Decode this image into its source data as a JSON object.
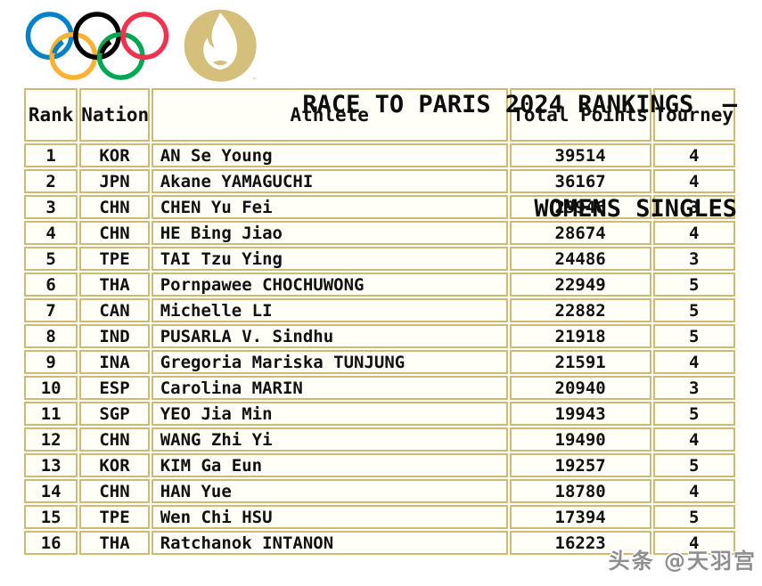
{
  "title": {
    "line1": "RACE TO PARIS 2024 RANKINGS  –",
    "line2": "WOMENS SINGLES"
  },
  "table": {
    "columns": [
      "Rank",
      "Nation",
      "Athlete",
      "Total Points",
      "Tourney"
    ],
    "rows": [
      {
        "rank": "1",
        "nation": "KOR",
        "athlete": "AN Se Young",
        "points": "39514",
        "tourney": "4"
      },
      {
        "rank": "2",
        "nation": "JPN",
        "athlete": "Akane YAMAGUCHI",
        "points": "36167",
        "tourney": "4"
      },
      {
        "rank": "3",
        "nation": "CHN",
        "athlete": "CHEN Yu Fei",
        "points": "29946",
        "tourney": "3"
      },
      {
        "rank": "4",
        "nation": "CHN",
        "athlete": "HE Bing Jiao",
        "points": "28674",
        "tourney": "4"
      },
      {
        "rank": "5",
        "nation": "TPE",
        "athlete": "TAI Tzu Ying",
        "points": "24486",
        "tourney": "3"
      },
      {
        "rank": "6",
        "nation": "THA",
        "athlete": "Pornpawee CHOCHUWONG",
        "points": "22949",
        "tourney": "5"
      },
      {
        "rank": "7",
        "nation": "CAN",
        "athlete": "Michelle LI",
        "points": "22882",
        "tourney": "5"
      },
      {
        "rank": "8",
        "nation": "IND",
        "athlete": "PUSARLA V. Sindhu",
        "points": "21918",
        "tourney": "5"
      },
      {
        "rank": "9",
        "nation": "INA",
        "athlete": "Gregoria Mariska TUNJUNG",
        "points": "21591",
        "tourney": "4"
      },
      {
        "rank": "10",
        "nation": "ESP",
        "athlete": "Carolina MARIN",
        "points": "20940",
        "tourney": "3"
      },
      {
        "rank": "11",
        "nation": "SGP",
        "athlete": "YEO Jia Min",
        "points": "19943",
        "tourney": "5"
      },
      {
        "rank": "12",
        "nation": "CHN",
        "athlete": "WANG Zhi Yi",
        "points": "19490",
        "tourney": "4"
      },
      {
        "rank": "13",
        "nation": "KOR",
        "athlete": "KIM Ga Eun",
        "points": "19257",
        "tourney": "5"
      },
      {
        "rank": "14",
        "nation": "CHN",
        "athlete": "HAN Yue",
        "points": "18780",
        "tourney": "4"
      },
      {
        "rank": "15",
        "nation": "TPE",
        "athlete": "Wen Chi HSU",
        "points": "17394",
        "tourney": "5"
      },
      {
        "rank": "16",
        "nation": "THA",
        "athlete": "Ratchanok INTANON",
        "points": "16223",
        "tourney": "4"
      }
    ]
  },
  "watermark": "头条 @天羽宫",
  "logos": {
    "olympic_rings": "olympic-rings",
    "paris2024_flame": "paris-2024-flame",
    "trademark": "™"
  },
  "colors": {
    "table_border_gold": "#cdbb74",
    "logo_gold": "#d4bf7b",
    "ring_blue": "#0081C8",
    "ring_yellow": "#FCB131",
    "ring_black": "#000000",
    "ring_green": "#00A651",
    "ring_red": "#EE334E",
    "text": "#111111",
    "watermark_gray": "#8f8f8f"
  },
  "chart_data": {
    "type": "table",
    "title": "RACE TO PARIS 2024 RANKINGS – WOMENS SINGLES",
    "columns": [
      "Rank",
      "Nation",
      "Athlete",
      "Total Points",
      "Tourney"
    ],
    "rows": [
      [
        1,
        "KOR",
        "AN Se Young",
        39514,
        4
      ],
      [
        2,
        "JPN",
        "Akane YAMAGUCHI",
        36167,
        4
      ],
      [
        3,
        "CHN",
        "CHEN Yu Fei",
        29946,
        3
      ],
      [
        4,
        "CHN",
        "HE Bing Jiao",
        28674,
        4
      ],
      [
        5,
        "TPE",
        "TAI Tzu Ying",
        24486,
        3
      ],
      [
        6,
        "THA",
        "Pornpawee CHOCHUWONG",
        22949,
        5
      ],
      [
        7,
        "CAN",
        "Michelle LI",
        22882,
        5
      ],
      [
        8,
        "IND",
        "PUSARLA V. Sindhu",
        21918,
        5
      ],
      [
        9,
        "INA",
        "Gregoria Mariska TUNJUNG",
        21591,
        4
      ],
      [
        10,
        "ESP",
        "Carolina MARIN",
        20940,
        3
      ],
      [
        11,
        "SGP",
        "YEO Jia Min",
        19943,
        5
      ],
      [
        12,
        "CHN",
        "WANG Zhi Yi",
        19490,
        4
      ],
      [
        13,
        "KOR",
        "KIM Ga Eun",
        19257,
        5
      ],
      [
        14,
        "CHN",
        "HAN Yue",
        18780,
        4
      ],
      [
        15,
        "TPE",
        "Wen Chi HSU",
        17394,
        5
      ],
      [
        16,
        "THA",
        "Ratchanok INTANON",
        16223,
        4
      ]
    ]
  }
}
